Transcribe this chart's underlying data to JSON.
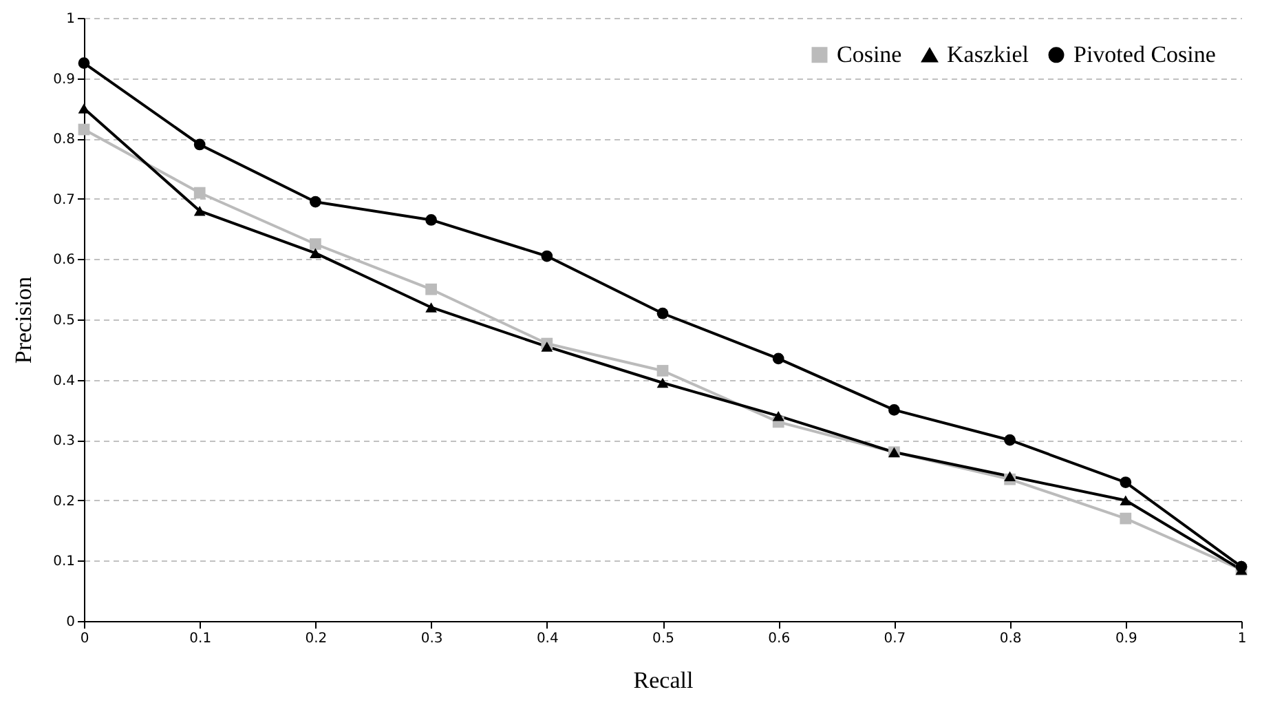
{
  "chart_data": {
    "type": "line",
    "xlabel": "Recall",
    "ylabel": "Precision",
    "x": [
      0,
      0.1,
      0.2,
      0.3,
      0.4,
      0.5,
      0.6,
      0.7,
      0.8,
      0.9,
      1
    ],
    "series": [
      {
        "name": "Cosine",
        "color": "#bbbbbb",
        "marker": "square",
        "values": [
          0.815,
          0.71,
          0.625,
          0.55,
          0.46,
          0.415,
          0.33,
          0.28,
          0.235,
          0.17,
          0.085
        ]
      },
      {
        "name": "Kaszkiel",
        "color": "#000000",
        "marker": "triangle",
        "values": [
          0.85,
          0.68,
          0.61,
          0.52,
          0.455,
          0.395,
          0.34,
          0.28,
          0.24,
          0.2,
          0.085
        ]
      },
      {
        "name": "Pivoted Cosine",
        "color": "#000000",
        "marker": "circle",
        "values": [
          0.925,
          0.79,
          0.695,
          0.665,
          0.605,
          0.51,
          0.435,
          0.35,
          0.3,
          0.23,
          0.09
        ]
      }
    ],
    "xlim": [
      0,
      1
    ],
    "xticks": [
      0,
      0.1,
      0.2,
      0.3,
      0.4,
      0.5,
      0.6,
      0.7,
      0.8,
      0.9,
      1
    ],
    "ylim": [
      0,
      1
    ],
    "yticks": [
      0,
      0.1,
      0.2,
      0.3,
      0.4,
      0.5,
      0.6,
      0.7,
      0.8,
      0.9,
      1
    ],
    "grid": "y",
    "legend": "top right"
  }
}
